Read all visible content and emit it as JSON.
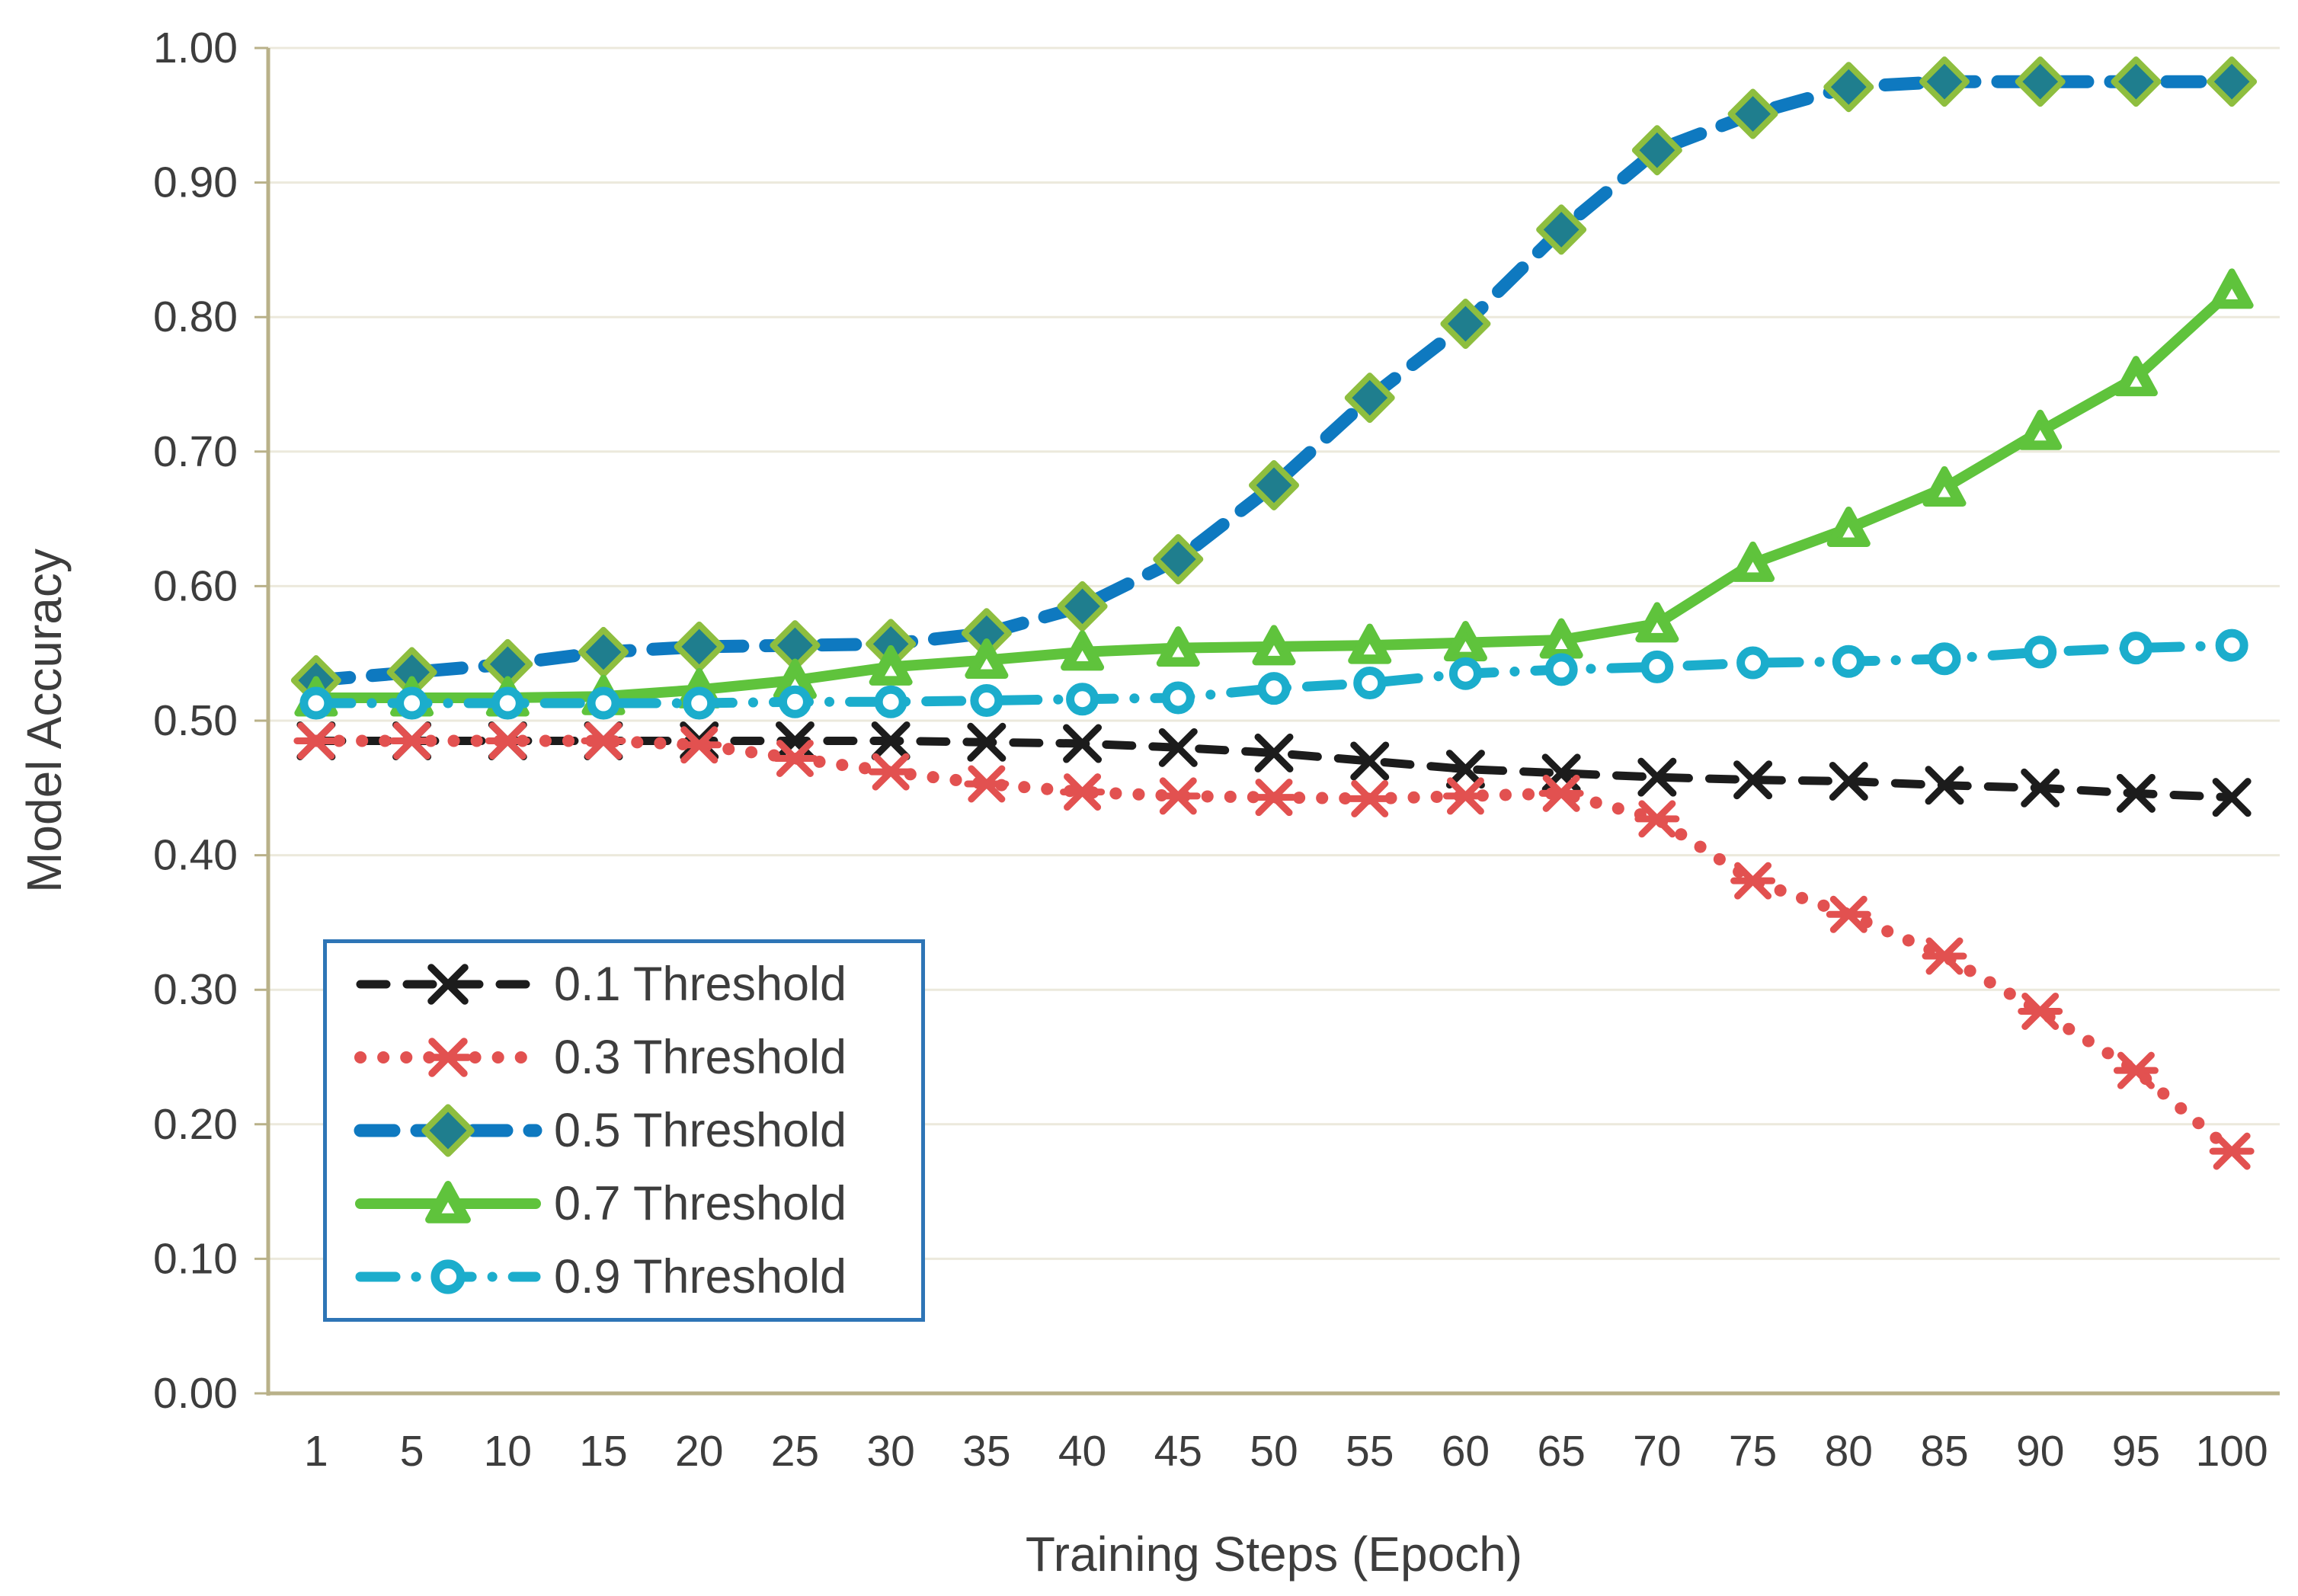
{
  "chart_data": {
    "type": "line",
    "title": "",
    "xlabel": "Training Steps (Epoch)",
    "ylabel": "Model Accuracy",
    "x_categories": [
      "1",
      "5",
      "10",
      "15",
      "20",
      "25",
      "30",
      "35",
      "40",
      "45",
      "50",
      "55",
      "60",
      "65",
      "70",
      "75",
      "80",
      "85",
      "90",
      "95",
      "100"
    ],
    "ylim": [
      0.0,
      1.0
    ],
    "ytick_step": 0.1,
    "ytick_labels": [
      "0.00",
      "0.10",
      "0.20",
      "0.30",
      "0.40",
      "0.50",
      "0.60",
      "0.70",
      "0.80",
      "0.90",
      "1.00"
    ],
    "grid": "horizontal",
    "legend_position": "inside-bottom-left",
    "series": [
      {
        "name": "0.1 Threshold",
        "color": "#1c1c1c",
        "line_style": "dash",
        "marker": "x",
        "values": [
          0.485,
          0.485,
          0.485,
          0.485,
          0.485,
          0.485,
          0.485,
          0.484,
          0.483,
          0.48,
          0.476,
          0.47,
          0.464,
          0.461,
          0.458,
          0.456,
          0.455,
          0.452,
          0.45,
          0.446,
          0.443
        ]
      },
      {
        "name": "0.3 Threshold",
        "color": "#e25150",
        "line_style": "dot",
        "marker": "asterisk",
        "values": [
          0.485,
          0.485,
          0.485,
          0.485,
          0.482,
          0.472,
          0.462,
          0.453,
          0.447,
          0.444,
          0.443,
          0.442,
          0.444,
          0.446,
          0.427,
          0.381,
          0.356,
          0.325,
          0.284,
          0.24,
          0.18
        ]
      },
      {
        "name": "0.5 Threshold",
        "color": "#0e79c0",
        "line_style": "dash",
        "marker": "diamond",
        "marker_fill": "#1f7e8e",
        "marker_stroke": "#8ebe3f",
        "values": [
          0.53,
          0.536,
          0.542,
          0.551,
          0.555,
          0.556,
          0.557,
          0.565,
          0.585,
          0.62,
          0.675,
          0.74,
          0.795,
          0.865,
          0.924,
          0.951,
          0.971,
          0.975,
          0.975,
          0.975,
          0.975
        ]
      },
      {
        "name": "0.7 Threshold",
        "color": "#5fc33c",
        "line_style": "solid",
        "marker": "triangle",
        "marker_inner": "#ffffff",
        "values": [
          0.517,
          0.517,
          0.517,
          0.518,
          0.523,
          0.53,
          0.54,
          0.545,
          0.551,
          0.554,
          0.555,
          0.556,
          0.558,
          0.56,
          0.572,
          0.617,
          0.643,
          0.673,
          0.715,
          0.755,
          0.82
        ]
      },
      {
        "name": "0.9 Threshold",
        "color": "#1badcc",
        "line_style": "dashdot",
        "marker": "circle",
        "marker_inner": "#ffffff",
        "values": [
          0.513,
          0.513,
          0.513,
          0.513,
          0.513,
          0.514,
          0.514,
          0.515,
          0.516,
          0.517,
          0.524,
          0.528,
          0.535,
          0.538,
          0.54,
          0.543,
          0.544,
          0.546,
          0.551,
          0.554,
          0.556
        ]
      }
    ],
    "colors": {
      "grid": "#ece9dc",
      "axis": "#b9b189",
      "tick_text": "#3d3d3d",
      "legend_border": "#2e75b6",
      "background": "#ffffff"
    }
  }
}
